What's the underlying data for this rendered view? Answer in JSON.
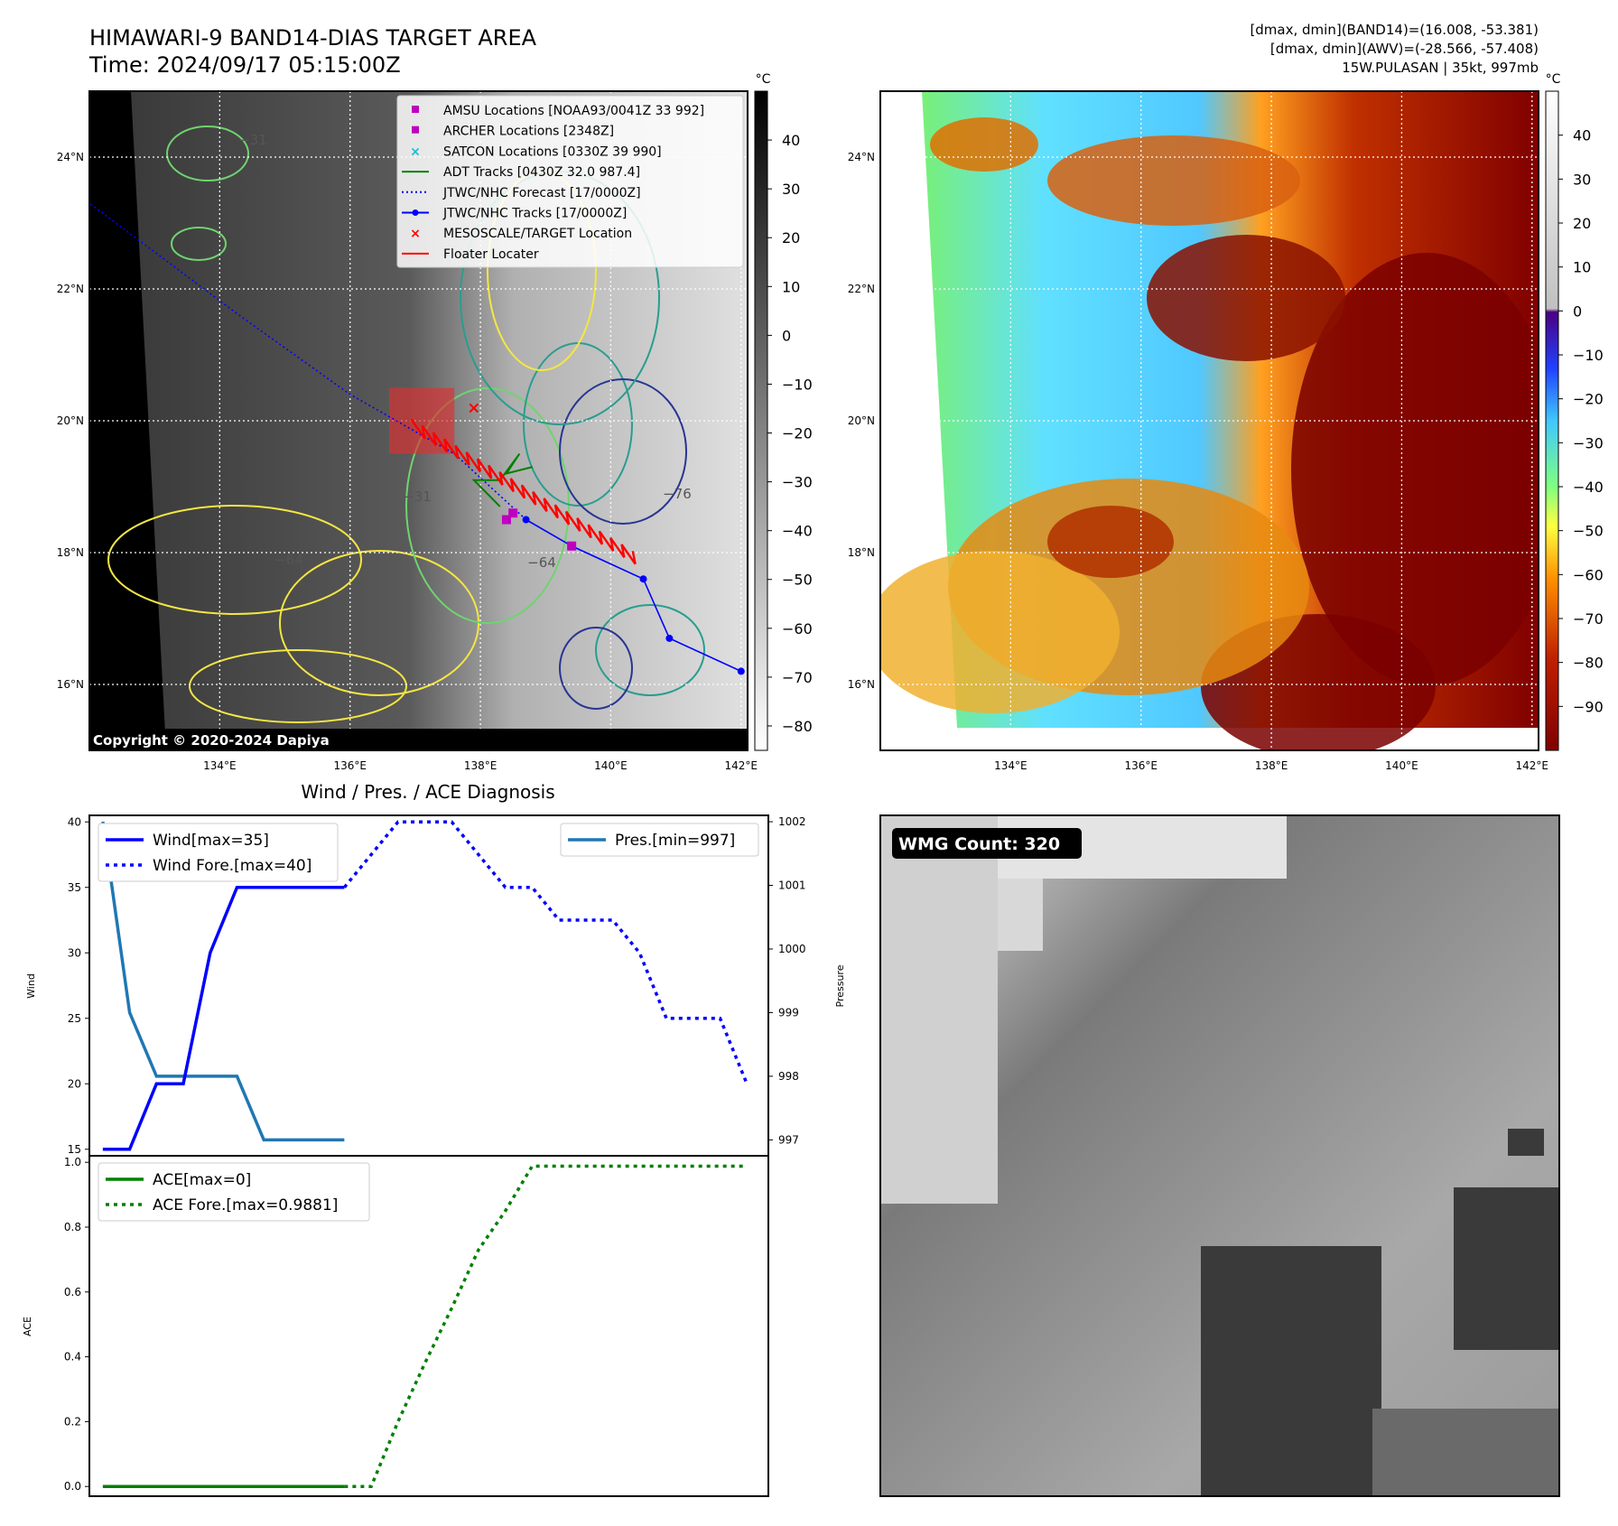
{
  "header": {
    "title_line1": "HIMAWARI-9 BAND14-DIAS TARGET AREA",
    "title_line2": "Time: 2024/09/17 05:15:00Z",
    "info_line1": "[dmax, dmin](BAND14)=(16.008, -53.381)",
    "info_line2": "[dmax, dmin](AWV)=(-28.566, -57.408)",
    "info_line3": "15W.PULASAN | 35kt, 997mb"
  },
  "map_common": {
    "lat_ticks": [
      "24°N",
      "22°N",
      "20°N",
      "18°N",
      "16°N"
    ],
    "lat_values": [
      24,
      22,
      20,
      18,
      16
    ],
    "lon_ticks": [
      "134°E",
      "136°E",
      "138°E",
      "140°E",
      "142°E"
    ],
    "lon_values": [
      134,
      136,
      138,
      140,
      142
    ],
    "lon_range": [
      132.0,
      142.1
    ],
    "lat_range": [
      15.0,
      25.0
    ]
  },
  "ir_map": {
    "colorbar_unit": "°C",
    "colorbar_ticks": [
      "40",
      "30",
      "20",
      "10",
      "0",
      "−10",
      "−20",
      "−30",
      "−40",
      "−50",
      "−60",
      "−70",
      "−80"
    ],
    "colorbar_values": [
      40,
      30,
      20,
      10,
      0,
      -10,
      -20,
      -30,
      -40,
      -50,
      -60,
      -70,
      -80
    ],
    "colorbar_range": [
      -85,
      50
    ],
    "copyright": "Copyright © 2020-2024 Dapiya",
    "contour_labels": [
      "−31",
      "−64",
      "−76",
      "−31",
      "−64"
    ],
    "legend": [
      {
        "label": "AMSU Locations [NOAA93/0041Z 33 992]",
        "color": "#bf00bf",
        "marker": "square"
      },
      {
        "label": "ARCHER Locations [2348Z]",
        "color": "#bf00bf",
        "marker": "square"
      },
      {
        "label": "SATCON Locations [0330Z 39 990]",
        "color": "#17becf",
        "marker": "x"
      },
      {
        "label": "ADT Tracks [0430Z 32.0 987.4]",
        "color": "#008000",
        "marker": "line"
      },
      {
        "label": "JTWC/NHC Forecast [17/0000Z]",
        "color": "#0000ff",
        "marker": "dotted"
      },
      {
        "label": "JTWC/NHC Tracks [17/0000Z]",
        "color": "#0000ff",
        "marker": "line-dot"
      },
      {
        "label": "MESOSCALE/TARGET Location",
        "color": "#ff0000",
        "marker": "x"
      },
      {
        "label": "Floater Locater",
        "color": "#ff0000",
        "marker": "line"
      }
    ],
    "jtwc_track": [
      [
        142.0,
        16.2
      ],
      [
        140.9,
        16.7
      ],
      [
        140.5,
        17.6
      ],
      [
        139.4,
        18.1
      ],
      [
        138.7,
        18.5
      ]
    ],
    "jtwc_forecast": [
      [
        138.7,
        18.5
      ],
      [
        137.6,
        19.5
      ],
      [
        136.0,
        20.4
      ],
      [
        134.3,
        21.6
      ],
      [
        132.0,
        23.3
      ]
    ],
    "adt_track": [
      [
        138.3,
        18.7
      ],
      [
        137.9,
        19.1
      ],
      [
        138.3,
        19.1
      ],
      [
        138.6,
        19.5
      ],
      [
        138.4,
        19.2
      ],
      [
        138.8,
        19.3
      ]
    ],
    "amsu": [
      138.4,
      18.5
    ],
    "archer": [
      138.5,
      18.6
    ],
    "archer2": [
      139.4,
      18.1
    ],
    "target": [
      137.9,
      20.2
    ],
    "floater_box": {
      "lon": [
        136.6,
        137.6
      ],
      "lat": [
        19.5,
        20.5
      ]
    }
  },
  "color_map": {
    "colorbar_unit": "°C",
    "colorbar_ticks": [
      "40",
      "30",
      "20",
      "10",
      "0",
      "−10",
      "−20",
      "−30",
      "−40",
      "−50",
      "−60",
      "−70",
      "−80",
      "−90"
    ],
    "colorbar_values": [
      40,
      30,
      20,
      10,
      0,
      -10,
      -20,
      -30,
      -40,
      -50,
      -60,
      -70,
      -80,
      -90
    ],
    "colorbar_range": [
      -100,
      50
    ]
  },
  "diagnosis": {
    "title": "Wind / Pres. / ACE Diagnosis",
    "wind_ylabel": "Wind",
    "pres_ylabel": "Pressure",
    "ace_ylabel": "ACE",
    "wind_ticks": [
      "40",
      "35",
      "30",
      "25",
      "20",
      "15"
    ],
    "pres_ticks": [
      "1002",
      "1001",
      "1000",
      "999",
      "998",
      "997"
    ],
    "ace_ticks": [
      "1.0",
      "0.8",
      "0.6",
      "0.4",
      "0.2",
      "0.0"
    ]
  },
  "chart_data": [
    {
      "type": "line",
      "title": "Wind / Pres. / ACE Diagnosis",
      "ylabel": "Wind",
      "ylim": [
        14.5,
        40.5
      ],
      "x": [
        0,
        1,
        2,
        3,
        4,
        5,
        6,
        7,
        8,
        9,
        10,
        11,
        12,
        13,
        14,
        15,
        16,
        17,
        18,
        19,
        20,
        21,
        22,
        23,
        24
      ],
      "series": [
        {
          "name": "Wind[max=35]",
          "color": "#0000ff",
          "style": "solid",
          "x": [
            0,
            1,
            2,
            3,
            4,
            5,
            6,
            7,
            8,
            9
          ],
          "values": [
            15,
            15,
            20,
            20,
            30,
            35,
            35,
            35,
            35,
            35
          ]
        },
        {
          "name": "Wind Fore.[max=40]",
          "color": "#0000ff",
          "style": "dotted",
          "x": [
            9,
            10,
            11,
            12,
            13,
            14,
            15,
            16,
            17,
            18,
            19,
            20,
            21,
            22,
            23,
            24
          ],
          "values": [
            35,
            37.5,
            40,
            40,
            40,
            37.5,
            35,
            35,
            32.5,
            32.5,
            32.5,
            30,
            25,
            25,
            25,
            20
          ]
        }
      ]
    },
    {
      "type": "line",
      "ylabel": "Pressure",
      "ylim": [
        996.75,
        1002.1
      ],
      "series": [
        {
          "name": "Pres.[min=997]",
          "color": "#1f77b4",
          "style": "solid",
          "x": [
            0,
            1,
            2,
            3,
            4,
            5,
            6,
            7,
            8,
            9
          ],
          "values": [
            1002,
            999,
            998,
            998,
            998,
            998,
            997,
            997,
            997,
            997
          ]
        }
      ]
    },
    {
      "type": "line",
      "ylabel": "ACE",
      "ylim": [
        -0.03,
        1.02
      ],
      "series": [
        {
          "name": "ACE[max=0]",
          "color": "#008000",
          "style": "solid",
          "x": [
            0,
            1,
            2,
            3,
            4,
            5,
            6,
            7,
            8,
            9
          ],
          "values": [
            0,
            0,
            0,
            0,
            0,
            0,
            0,
            0,
            0,
            0
          ]
        },
        {
          "name": "ACE Fore.[max=0.9881]",
          "color": "#008000",
          "style": "dotted",
          "x": [
            9,
            10,
            11,
            12,
            13,
            14,
            15,
            16,
            17,
            18,
            19,
            20,
            21,
            22,
            23,
            24
          ],
          "values": [
            0,
            0,
            0.2,
            0.38,
            0.55,
            0.73,
            0.85,
            0.9881,
            0.9881,
            0.9881,
            0.9881,
            0.9881,
            0.9881,
            0.9881,
            0.9881,
            0.9881
          ]
        }
      ]
    }
  ],
  "wmg": {
    "label": "WMG Count: 320"
  }
}
